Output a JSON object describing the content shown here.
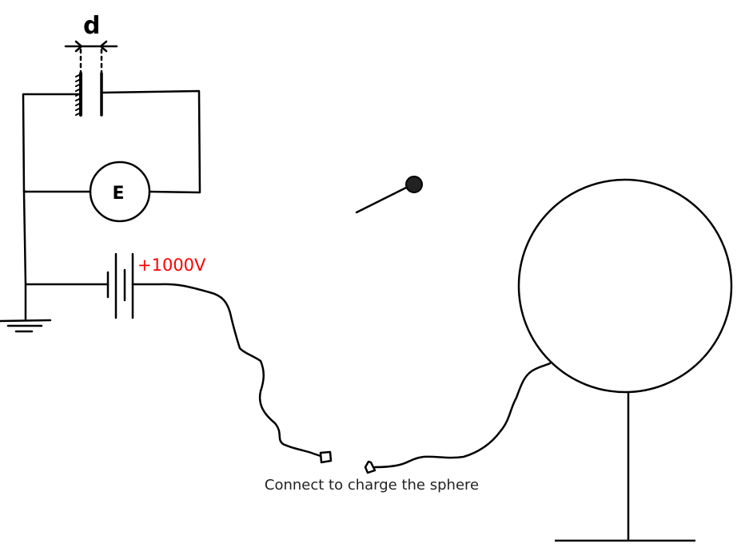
{
  "diagram": {
    "gap_label": "d",
    "electrometer_label": "E",
    "voltage_label": "+1000V",
    "caption": "Connect to charge the sphere",
    "colors": {
      "ink": "#000000",
      "voltage": "#ff0000",
      "caption": "#222222",
      "probe_ball": "#222222"
    }
  }
}
